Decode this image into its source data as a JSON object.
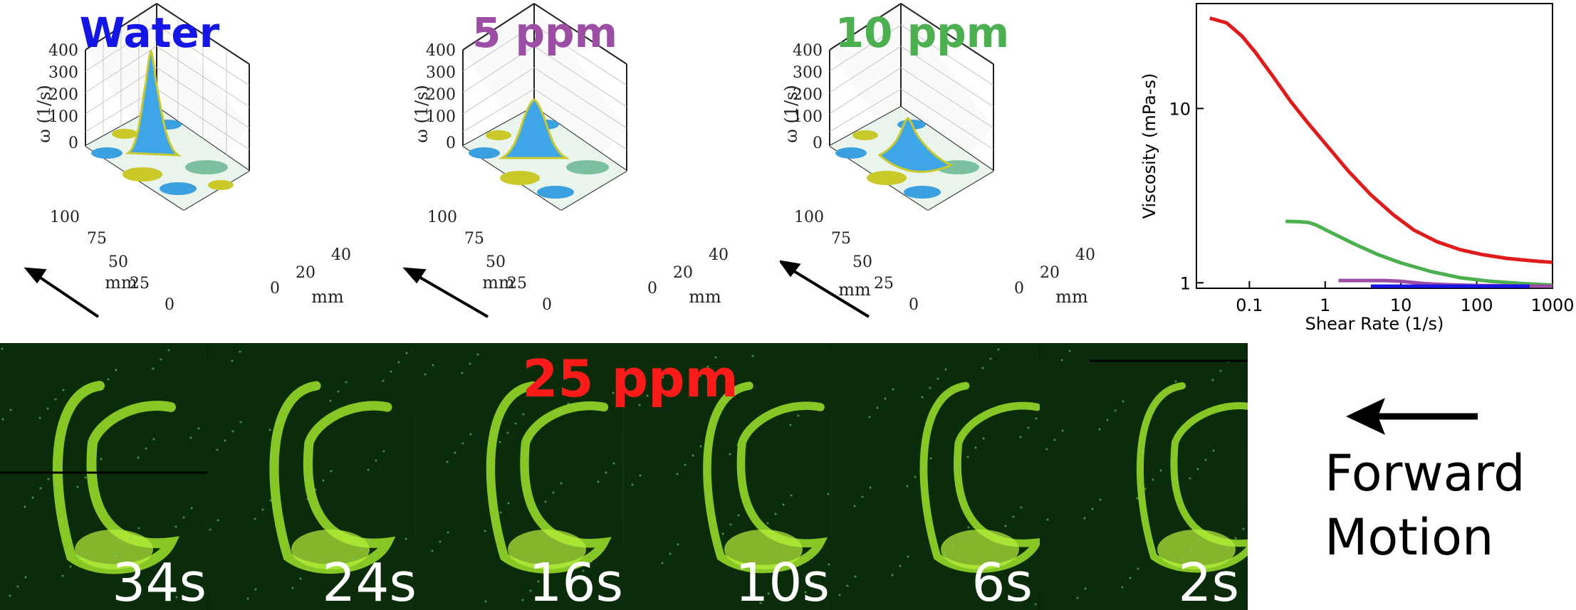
{
  "panels3d": [
    {
      "title": "Water",
      "color": "#1515e6",
      "peak": 360
    },
    {
      "title": "5 ppm",
      "color": "#9b4ea3",
      "peak": 230
    },
    {
      "title": "10 ppm",
      "color": "#4caf50",
      "peak": 150
    }
  ],
  "axis3d": {
    "z_label": "ω (1/s)",
    "z_ticks": [
      "0",
      "100",
      "200",
      "300",
      "400"
    ],
    "y_ticks": [
      "100",
      "75",
      "50",
      "25",
      "0"
    ],
    "y_label": "mm",
    "x_ticks": [
      "0",
      "20",
      "40"
    ],
    "x_label": "mm"
  },
  "chart_data": {
    "type": "line",
    "xlabel": "Shear Rate (1/s)",
    "ylabel": "Viscosity (mPa-s)",
    "xscale": "log",
    "yscale": "log",
    "xlim": [
      0.02,
      1000
    ],
    "ylim": [
      0.93,
      40
    ],
    "xticks": [
      "0.1",
      "1",
      "10",
      "100",
      "1000"
    ],
    "yticks": [
      "1",
      "10"
    ],
    "series": [
      {
        "color": "#e01b1b",
        "x": [
          0.03,
          0.05,
          0.08,
          0.12,
          0.2,
          0.35,
          0.6,
          1,
          2,
          4,
          8,
          15,
          30,
          60,
          120,
          250,
          500,
          1000
        ],
        "y": [
          33,
          31,
          26,
          21,
          15.5,
          11,
          8.2,
          6.3,
          4.4,
          3.2,
          2.45,
          2.0,
          1.72,
          1.55,
          1.45,
          1.38,
          1.34,
          1.31
        ]
      },
      {
        "color": "#4caf50",
        "x": [
          0.3,
          0.45,
          0.6,
          0.75,
          1,
          1.5,
          2.5,
          5,
          10,
          25,
          60,
          150,
          400,
          1000
        ],
        "y": [
          2.25,
          2.24,
          2.22,
          2.15,
          2.02,
          1.85,
          1.66,
          1.45,
          1.3,
          1.16,
          1.07,
          1.02,
          0.99,
          0.97
        ]
      },
      {
        "color": "#9b4ea3",
        "x": [
          1.5,
          3,
          6,
          10,
          20,
          40,
          100,
          300,
          1000
        ],
        "y": [
          1.03,
          1.03,
          1.03,
          1.02,
          0.99,
          0.975,
          0.965,
          0.96,
          0.955
        ]
      },
      {
        "color": "#1515e6",
        "x": [
          4,
          10,
          30,
          100,
          300,
          500
        ],
        "y": [
          0.955,
          0.955,
          0.955,
          0.955,
          0.955,
          0.955
        ]
      }
    ]
  },
  "strip": {
    "title": "25 ppm",
    "title_color": "#ff1a1a",
    "times": [
      "34s",
      "24s",
      "16s",
      "10s",
      "6s",
      "2s"
    ]
  },
  "motion": {
    "line1": "Forward",
    "line2": "Motion"
  }
}
